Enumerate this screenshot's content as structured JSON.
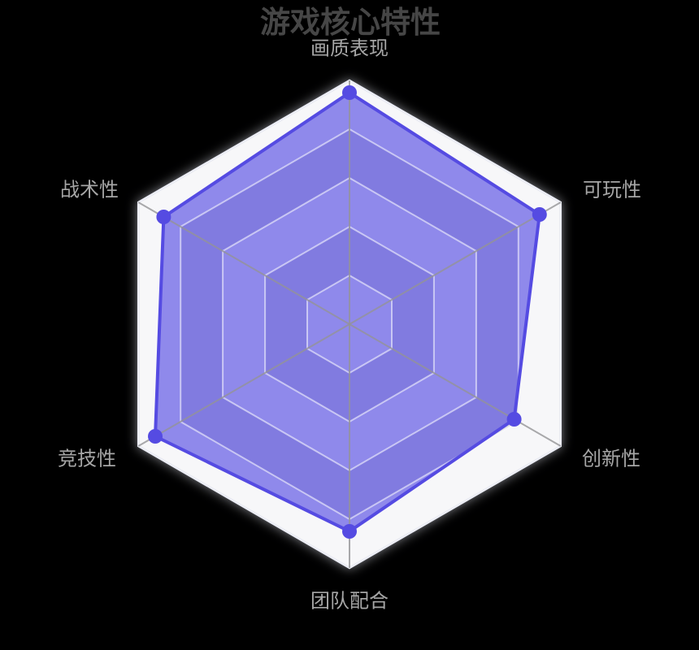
{
  "title": {
    "text": "游戏核心特性"
  },
  "chart_data": {
    "type": "radar",
    "indicators": [
      {
        "name": "画质表现",
        "max": 100
      },
      {
        "name": "可玩性",
        "max": 100
      },
      {
        "name": "创新性",
        "max": 100
      },
      {
        "name": "团队配合",
        "max": 100
      },
      {
        "name": "竞技性",
        "max": 100
      },
      {
        "name": "战术性",
        "max": 100
      }
    ],
    "series": [
      {
        "values": [
          95,
          90,
          78,
          85,
          92,
          88
        ]
      }
    ],
    "rings": 5,
    "shape": "hexagon",
    "legend_position": "none"
  },
  "colors": {
    "background": "#000000",
    "title": "#464646",
    "axis_label": "#a6a6a6",
    "accent_line": "#554be2",
    "accent_fill": "rgba(47,36,222,0.52)",
    "band_light": "#f7f7f9",
    "band_dark": "#dadae2",
    "outer_rim": "#d9dcea",
    "ring_line": "rgba(255,255,255,0.55)",
    "spoke_line": "rgba(147,147,150,0.8)"
  }
}
